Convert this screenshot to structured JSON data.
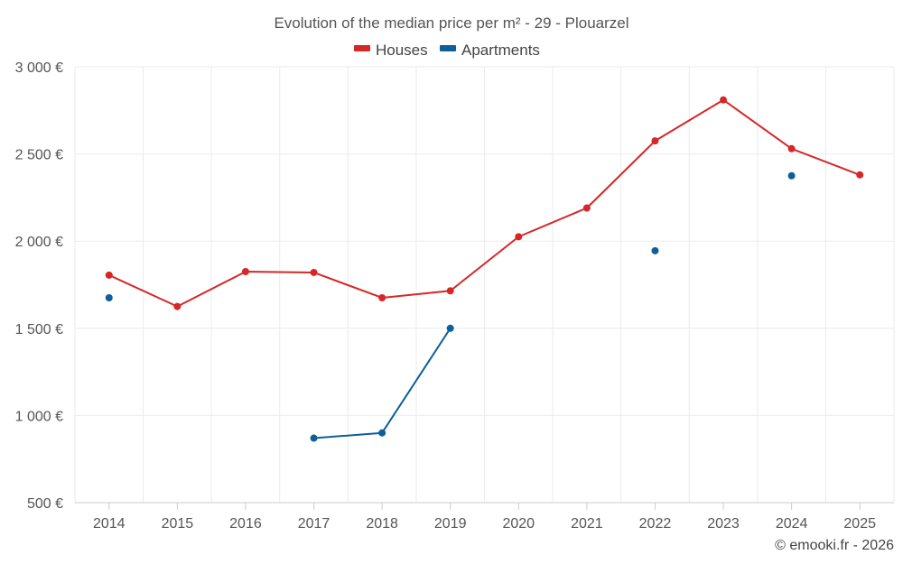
{
  "chart_data": {
    "type": "line",
    "title": "Evolution of the median price per m² - 29 - Plouarzel",
    "categories": [
      "2014",
      "2015",
      "2016",
      "2017",
      "2018",
      "2019",
      "2020",
      "2021",
      "2022",
      "2023",
      "2024",
      "2025"
    ],
    "ylim": [
      500,
      3000
    ],
    "yticks": [
      500,
      1000,
      1500,
      2000,
      2500,
      3000
    ],
    "ytick_labels": [
      "500 €",
      "1 000 €",
      "1 500 €",
      "2 000 €",
      "2 500 €",
      "3 000 €"
    ],
    "grid": true,
    "legend_position": "top-center",
    "series": [
      {
        "name": "Houses",
        "color": "#d62728",
        "values": [
          1805,
          1625,
          1825,
          1820,
          1675,
          1715,
          2025,
          2190,
          2575,
          2810,
          2530,
          2380
        ]
      },
      {
        "name": "Apartments",
        "color": "#0d5f99",
        "values": [
          1675,
          null,
          null,
          870,
          900,
          1500,
          null,
          null,
          1945,
          null,
          2375,
          null
        ]
      }
    ]
  },
  "credit": "© emooki.fr - 2026"
}
